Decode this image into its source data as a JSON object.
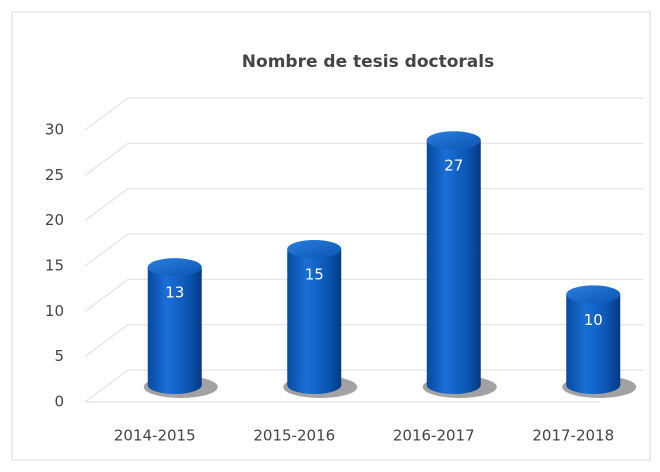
{
  "chart_data": {
    "type": "bar",
    "title": "Nombre de tesis doctorals",
    "categories": [
      "2014-2015",
      "2015-2016",
      "2016-2017",
      "2017-2018"
    ],
    "values": [
      13,
      15,
      27,
      10
    ],
    "color": "#0b5cc0",
    "ylim": [
      0,
      30
    ],
    "yticks": [
      0,
      5,
      10,
      15,
      20,
      25,
      30
    ],
    "grid": true
  }
}
